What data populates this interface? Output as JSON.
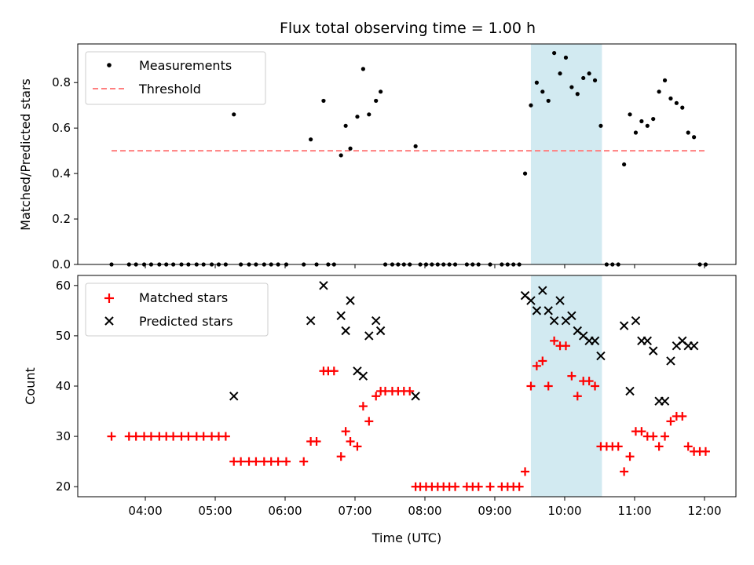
{
  "colors": {
    "matched": "#ff0000",
    "predicted": "#000000",
    "threshold": "#ff7f7f",
    "band": "#add8e6"
  },
  "chart_data": [
    {
      "type": "scatter",
      "title": "Flux total observing time = 1.00 h",
      "xlabel": "",
      "ylabel": "Matched/Predicted stars",
      "ylim": [
        0,
        0.97
      ],
      "yticks": [
        "0.0",
        "0.2",
        "0.4",
        "0.6",
        "0.8"
      ],
      "ytick_values": [
        0,
        0.2,
        0.4,
        0.6,
        0.8
      ],
      "legend_position": "top-left",
      "legend": [
        "Measurements",
        "Threshold"
      ],
      "shaded_interval": [
        "09:31",
        "10:32"
      ],
      "threshold": {
        "name": "Threshold",
        "value": 0.5,
        "x_range": [
          "03:31",
          "12:00"
        ]
      },
      "series": [
        {
          "name": "Measurements",
          "x": [
            "03:31",
            "03:46",
            "03:52",
            "03:59",
            "04:05",
            "04:12",
            "04:18",
            "04:24",
            "04:31",
            "04:37",
            "04:44",
            "04:50",
            "04:57",
            "05:03",
            "05:09",
            "05:16",
            "05:22",
            "05:29",
            "05:35",
            "05:42",
            "05:48",
            "05:54",
            "06:01",
            "06:16",
            "06:22",
            "06:27",
            "06:33",
            "06:37",
            "06:42",
            "06:48",
            "06:52",
            "06:56",
            "07:02",
            "07:07",
            "07:12",
            "07:18",
            "07:22",
            "07:26",
            "07:32",
            "07:37",
            "07:42",
            "07:47",
            "07:52",
            "07:56",
            "08:01",
            "08:06",
            "08:11",
            "08:16",
            "08:21",
            "08:26",
            "08:36",
            "08:41",
            "08:46",
            "08:56",
            "09:06",
            "09:11",
            "09:16",
            "09:21",
            "09:26",
            "09:31",
            "09:36",
            "09:41",
            "09:46",
            "09:51",
            "09:56",
            "10:01",
            "10:06",
            "10:11",
            "10:16",
            "10:21",
            "10:26",
            "10:31",
            "10:36",
            "10:41",
            "10:46",
            "10:51",
            "10:56",
            "11:01",
            "11:06",
            "11:11",
            "11:16",
            "11:21",
            "11:26",
            "11:31",
            "11:36",
            "11:41",
            "11:46",
            "11:51",
            "11:56",
            "12:01"
          ],
          "y": [
            0,
            0,
            0,
            0,
            0,
            0,
            0,
            0,
            0,
            0,
            0,
            0,
            0,
            0,
            0,
            0.66,
            0,
            0,
            0,
            0,
            0,
            0,
            0,
            0,
            0.55,
            0,
            0.72,
            0,
            0,
            0.48,
            0.61,
            0.51,
            0.65,
            0.86,
            0.66,
            0.72,
            0.76,
            0,
            0,
            0,
            0,
            0,
            0.52,
            0,
            0,
            0,
            0,
            0,
            0,
            0,
            0,
            0,
            0,
            0,
            0,
            0,
            0,
            0,
            0.4,
            0.7,
            0.8,
            0.76,
            0.72,
            0.93,
            0.84,
            0.91,
            0.78,
            0.75,
            0.82,
            0.84,
            0.81,
            0.61,
            0,
            0,
            0,
            0.44,
            0.66,
            0.58,
            0.63,
            0.61,
            0.64,
            0.76,
            0.81,
            0.73,
            0.71,
            0.69,
            0.58,
            0.56,
            0,
            0
          ]
        }
      ]
    },
    {
      "type": "scatter",
      "title": "",
      "xlabel": "Time (UTC)",
      "ylabel": "Count",
      "ylim": [
        18,
        62
      ],
      "yticks": [
        "20",
        "30",
        "40",
        "50",
        "60"
      ],
      "ytick_values": [
        20,
        30,
        40,
        50,
        60
      ],
      "xlim": [
        "03:02",
        "12:27"
      ],
      "xticks": [
        "04:00",
        "05:00",
        "06:00",
        "07:00",
        "08:00",
        "09:00",
        "10:00",
        "11:00",
        "12:00"
      ],
      "legend_position": "top-left",
      "legend": [
        "Matched stars",
        "Predicted stars"
      ],
      "shaded_interval": [
        "09:31",
        "10:32"
      ],
      "series": [
        {
          "name": "Matched stars",
          "x": [
            "03:31",
            "03:46",
            "03:52",
            "03:59",
            "04:05",
            "04:12",
            "04:18",
            "04:24",
            "04:31",
            "04:37",
            "04:44",
            "04:50",
            "04:57",
            "05:03",
            "05:09",
            "05:16",
            "05:22",
            "05:29",
            "05:35",
            "05:42",
            "05:48",
            "05:54",
            "06:01",
            "06:16",
            "06:22",
            "06:27",
            "06:33",
            "06:37",
            "06:42",
            "06:48",
            "06:52",
            "06:56",
            "07:02",
            "07:07",
            "07:12",
            "07:18",
            "07:22",
            "07:26",
            "07:32",
            "07:37",
            "07:42",
            "07:47",
            "07:52",
            "07:56",
            "08:01",
            "08:06",
            "08:11",
            "08:16",
            "08:21",
            "08:26",
            "08:36",
            "08:41",
            "08:46",
            "08:56",
            "09:06",
            "09:11",
            "09:16",
            "09:21",
            "09:26",
            "09:31",
            "09:36",
            "09:41",
            "09:46",
            "09:51",
            "09:56",
            "10:01",
            "10:06",
            "10:11",
            "10:16",
            "10:21",
            "10:26",
            "10:31",
            "10:36",
            "10:41",
            "10:46",
            "10:51",
            "10:56",
            "11:01",
            "11:06",
            "11:11",
            "11:16",
            "11:21",
            "11:26",
            "11:31",
            "11:36",
            "11:41",
            "11:46",
            "11:51",
            "11:56",
            "12:01"
          ],
          "y": [
            30,
            30,
            30,
            30,
            30,
            30,
            30,
            30,
            30,
            30,
            30,
            30,
            30,
            30,
            30,
            25,
            25,
            25,
            25,
            25,
            25,
            25,
            25,
            25,
            29,
            29,
            43,
            43,
            43,
            26,
            31,
            29,
            28,
            36,
            33,
            38,
            39,
            39,
            39,
            39,
            39,
            39,
            20,
            20,
            20,
            20,
            20,
            20,
            20,
            20,
            20,
            20,
            20,
            20,
            20,
            20,
            20,
            20,
            23,
            40,
            44,
            45,
            40,
            49,
            48,
            48,
            42,
            38,
            41,
            41,
            40,
            28,
            28,
            28,
            28,
            23,
            26,
            31,
            31,
            30,
            30,
            28,
            30,
            33,
            34,
            34,
            28,
            27,
            27,
            27
          ]
        },
        {
          "name": "Predicted stars",
          "x": [
            "05:16",
            "06:22",
            "06:33",
            "06:48",
            "06:52",
            "06:56",
            "07:02",
            "07:07",
            "07:12",
            "07:18",
            "07:22",
            "07:52",
            "09:26",
            "09:31",
            "09:36",
            "09:46",
            "09:41",
            "09:51",
            "09:56",
            "10:01",
            "10:06",
            "10:11",
            "10:16",
            "10:21",
            "10:26",
            "10:31",
            "10:51",
            "10:56",
            "11:01",
            "11:06",
            "11:11",
            "11:16",
            "11:21",
            "11:26",
            "11:31",
            "11:36",
            "11:41",
            "11:46",
            "11:51"
          ],
          "y": [
            38,
            53,
            60,
            54,
            51,
            57,
            43,
            42,
            50,
            53,
            51,
            38,
            58,
            57,
            55,
            55,
            59,
            53,
            57,
            53,
            54,
            51,
            50,
            49,
            49,
            46,
            52,
            39,
            53,
            49,
            49,
            47,
            37,
            37,
            45,
            48,
            49,
            48,
            48
          ]
        }
      ]
    }
  ]
}
